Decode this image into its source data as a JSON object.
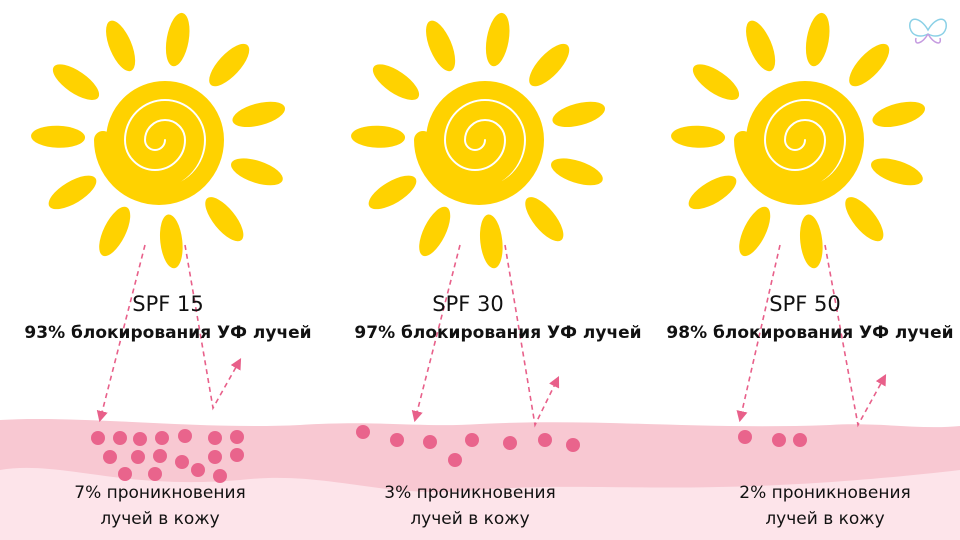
{
  "panels": [
    {
      "spf": "SPF 15",
      "blocking": "93% блокирования УФ лучей",
      "penetration": [
        "7% проникновения",
        "лучей в кожу"
      ]
    },
    {
      "spf": "SPF 30",
      "blocking": "97% блокирования УФ лучей",
      "penetration": [
        "3% проникновения",
        "лучей в кожу"
      ]
    },
    {
      "spf": "SPF 50",
      "blocking": "98% блокирования УФ лучей",
      "penetration": [
        "2% проникновения",
        "лучей в кожу"
      ]
    }
  ]
}
